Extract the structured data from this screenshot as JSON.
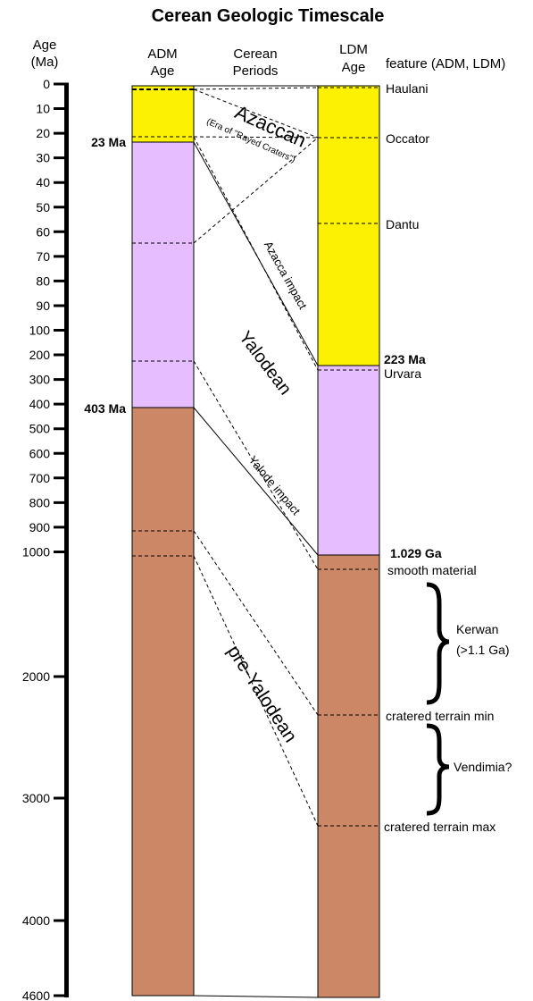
{
  "title": "Cerean Geologic Timescale",
  "headers": {
    "age_line1": "Age",
    "age_line2": "(Ma)",
    "adm_line1": "ADM",
    "adm_line2": "Age",
    "periods_line1": "Cerean",
    "periods_line2": "Periods",
    "ldm_line1": "LDM",
    "ldm_line2": "Age",
    "feature": "feature (ADM, LDM)"
  },
  "axis": {
    "ticks_small": [
      "0",
      "10",
      "20",
      "30",
      "40",
      "50",
      "60",
      "70",
      "80",
      "90",
      "100",
      "200",
      "300",
      "400",
      "500",
      "600",
      "700",
      "800",
      "900",
      "1000"
    ],
    "ticks_large": [
      "2000",
      "3000",
      "4000",
      "4600"
    ]
  },
  "adm": {
    "boundary_azaccan": "23 Ma",
    "boundary_yalodean": "403 Ma"
  },
  "ldm": {
    "boundary_azaccan": "223 Ma",
    "boundary_yalodean": "1.029 Ga"
  },
  "periods": {
    "azaccan": "Azaccan",
    "azaccan_sub": "(Era of \"Rayed Craters\")",
    "azacca_impact": "Azacca impact",
    "yalodean": "Yalodean",
    "yalode_impact": "Yalode impact",
    "pre_yalodean": "pre-Yalodean"
  },
  "features": {
    "haulani": "Haulani",
    "occator": "Occator",
    "dantu": "Dantu",
    "urvara": "Urvara",
    "smooth_material": "smooth material",
    "kerwan_line1": "Kerwan",
    "kerwan_line2": "(>1.1 Ga)",
    "cratered_min": "cratered terrain min",
    "vendimia": "Vendimia?",
    "cratered_max": "cratered terrain max"
  },
  "colors": {
    "azaccan": "#fcf200",
    "yalodean": "#e6beff",
    "pre_yalodean": "#cc8866"
  }
}
